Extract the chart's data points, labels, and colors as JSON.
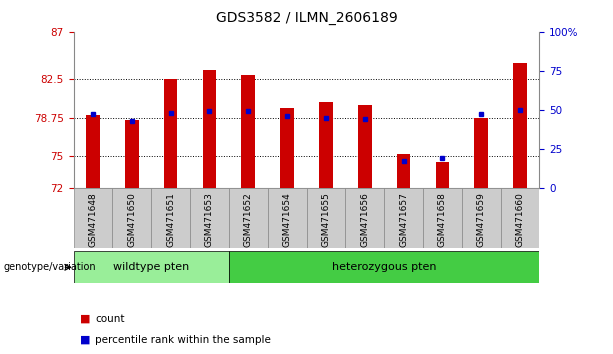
{
  "title": "GDS3582 / ILMN_2606189",
  "samples": [
    "GSM471648",
    "GSM471650",
    "GSM471651",
    "GSM471653",
    "GSM471652",
    "GSM471654",
    "GSM471655",
    "GSM471656",
    "GSM471657",
    "GSM471658",
    "GSM471659",
    "GSM471660"
  ],
  "count_values": [
    79.0,
    78.5,
    82.5,
    83.3,
    82.8,
    79.7,
    80.2,
    80.0,
    75.2,
    74.5,
    78.75,
    84.0
  ],
  "percentile_values": [
    47,
    43,
    48,
    49,
    49,
    46,
    45,
    44,
    17,
    19,
    47,
    50
  ],
  "ymin": 72,
  "ymax": 87,
  "yticks": [
    72,
    75,
    78.75,
    82.5,
    87
  ],
  "ytick_labels": [
    "72",
    "75",
    "78.75",
    "82.5",
    "87"
  ],
  "right_yticks": [
    0,
    25,
    50,
    75,
    100
  ],
  "right_ytick_labels": [
    "0",
    "25",
    "50",
    "75",
    "100%"
  ],
  "bar_color": "#cc0000",
  "dot_color": "#0000cc",
  "bar_bottom": 72,
  "wildtype_count": 4,
  "wildtype_label": "wildtype pten",
  "heterozygous_label": "heterozygous pten",
  "wildtype_color": "#99ee99",
  "heterozygous_color": "#44cc44",
  "group_label": "genotype/variation",
  "legend_count": "count",
  "legend_percentile": "percentile rank within the sample",
  "title_fontsize": 10,
  "tick_label_color_left": "#cc0000",
  "tick_label_color_right": "#0000cc",
  "grid_lines": [
    75,
    78.75,
    82.5
  ],
  "bar_width": 0.35
}
